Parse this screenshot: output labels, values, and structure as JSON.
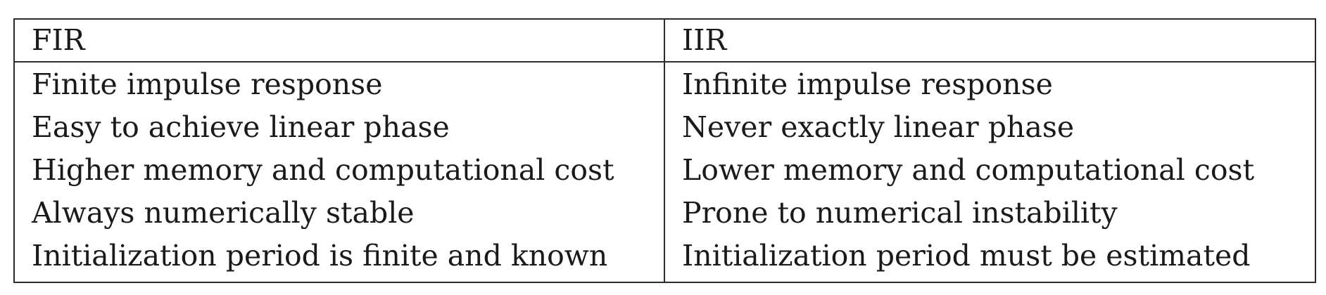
{
  "table": {
    "headers": [
      "FIR",
      "IIR"
    ],
    "rows": [
      [
        "Finite impulse response",
        "Infinite impulse response"
      ],
      [
        "Easy to achieve linear phase",
        "Never exactly linear phase"
      ],
      [
        "Higher memory and computational cost",
        "Lower memory and computational cost"
      ],
      [
        "Always numerically stable",
        "Prone to numerical instability"
      ],
      [
        "Initialization period is finite and known",
        "Initialization period must be estimated"
      ]
    ]
  }
}
